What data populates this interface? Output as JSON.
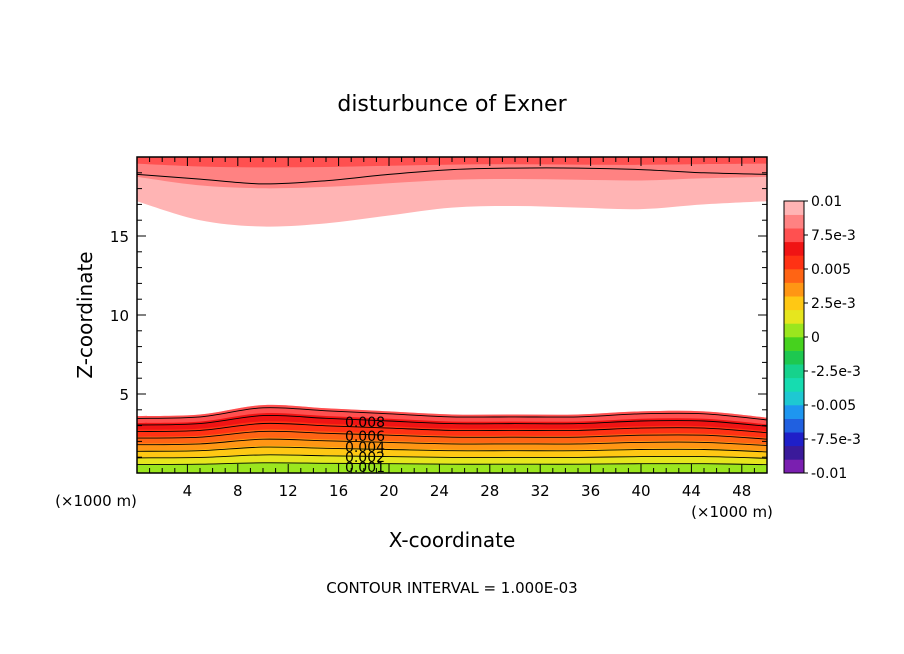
{
  "chart_data": {
    "type": "filled-contour",
    "title": "disturbunce of Exner",
    "xlabel": "X-coordinate",
    "ylabel": "Z-coordinate",
    "x_unit": "(×1000 m)",
    "x_unit_left": "(×1000 m)",
    "xlim": [
      0,
      50
    ],
    "ylim": [
      0,
      20
    ],
    "x_ticks": [
      4,
      8,
      12,
      16,
      20,
      24,
      28,
      32,
      36,
      40,
      44,
      48
    ],
    "y_ticks": [
      5,
      10,
      15
    ],
    "footer": "CONTOUR INTERVAL = 1.000E-03",
    "colorbar": {
      "labels": [
        "0.01",
        "7.5e-3",
        "0.005",
        "2.5e-3",
        "0",
        "-2.5e-3",
        "-0.005",
        "-7.5e-3",
        "-0.01"
      ],
      "range": [
        -0.01,
        0.01
      ],
      "colors": [
        "#7a1fb0",
        "#3a1a9a",
        "#1f1fc8",
        "#2060e0",
        "#1e96f0",
        "#1ec8d2",
        "#16dcb0",
        "#16d28c",
        "#1ec850",
        "#46d21e",
        "#9be61e",
        "#e6e61e",
        "#ffc814",
        "#ff9614",
        "#ff6414",
        "#ff3214",
        "#f01414",
        "#ff5050",
        "#ff8282",
        "#ffb4b4"
      ]
    },
    "contour_labels": [
      "0.008",
      "0.006",
      "0.004",
      "0.002",
      "0.001"
    ],
    "surface_layers": {
      "x": [
        0,
        5,
        10,
        15,
        20,
        25,
        30,
        35,
        40,
        45,
        50
      ],
      "top_of_anomaly_km": [
        3.6,
        3.7,
        4.3,
        4.1,
        3.9,
        3.7,
        3.7,
        3.7,
        3.9,
        3.9,
        3.5
      ],
      "levels": [
        0.0075,
        0.0065,
        0.0055,
        0.0045,
        0.0035,
        0.0025,
        0.0015,
        0.0005
      ]
    },
    "upper_layers": {
      "x": [
        0,
        5,
        10,
        15,
        20,
        25,
        30,
        35,
        40,
        45,
        50
      ],
      "bottom_of_anomaly_km": [
        17.2,
        16.0,
        15.6,
        15.8,
        16.3,
        16.8,
        16.9,
        16.8,
        16.7,
        17.0,
        17.2
      ],
      "contour_km": [
        18.9,
        18.6,
        18.3,
        18.5,
        18.9,
        19.2,
        19.3,
        19.3,
        19.2,
        19.0,
        18.9
      ]
    }
  }
}
